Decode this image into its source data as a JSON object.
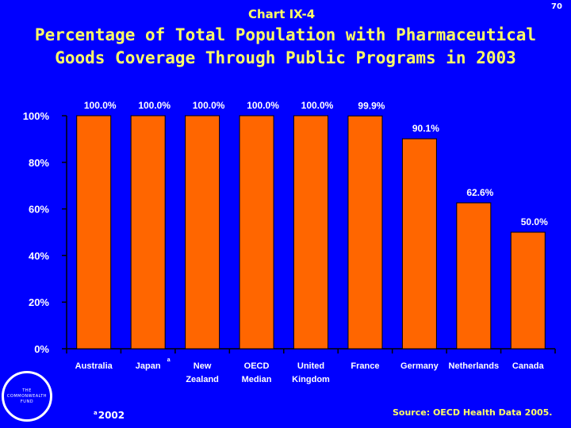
{
  "header": {
    "chart_id": "Chart IX-4",
    "page_number": "70",
    "title_line1": "Percentage of Total Population with Pharmaceutical",
    "title_line2": "Goods Coverage Through Public Programs in 2003"
  },
  "colors": {
    "background": "#0000FF",
    "bar": "#FF6600",
    "title": "#FFFF66",
    "axis": "#000000",
    "text": "#FFFFFF"
  },
  "chart_data": {
    "type": "bar",
    "title": "Percentage of Total Population with Pharmaceutical Goods Coverage Through Public Programs in 2003",
    "categories": [
      [
        "Australia"
      ],
      [
        "Japan"
      ],
      [
        "New",
        "Zealand"
      ],
      [
        "OECD",
        "Median"
      ],
      [
        "United",
        "Kingdom"
      ],
      [
        "France"
      ],
      [
        "Germany"
      ],
      [
        "Netherlands"
      ],
      [
        "Canada"
      ]
    ],
    "category_footnote_marks": [
      "",
      "a",
      "",
      "",
      "",
      "",
      "",
      "",
      ""
    ],
    "values": [
      100.0,
      100.0,
      100.0,
      100.0,
      100.0,
      99.9,
      90.1,
      62.6,
      50.0
    ],
    "data_labels": [
      "100.0%",
      "100.0%",
      "100.0%",
      "100.0%",
      "100.0%",
      "99.9%",
      "90.1%",
      "62.6%",
      "50.0%"
    ],
    "y_ticks": [
      0,
      20,
      40,
      60,
      80,
      100
    ],
    "y_tick_labels": [
      "0%",
      "20%",
      "40%",
      "60%",
      "80%",
      "100%"
    ],
    "ylim": [
      0,
      100
    ],
    "xlabel": "",
    "ylabel": "",
    "grid": false
  },
  "footer": {
    "footnote_mark": "a",
    "footnote_text": "2002",
    "source": "Source: OECD Health Data 2005.",
    "logo_lines": [
      "THE",
      "COMMONWEALTH",
      "FUND"
    ]
  }
}
